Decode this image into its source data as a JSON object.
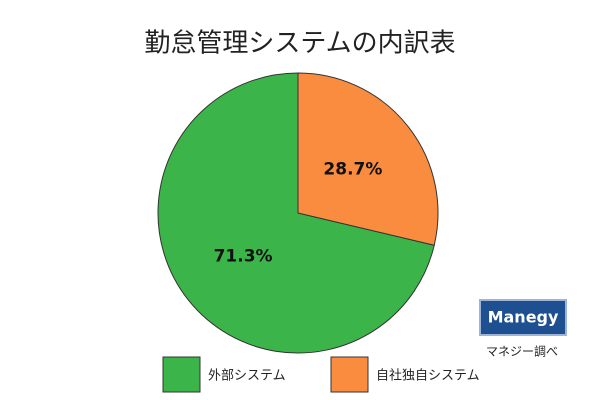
{
  "chart_data": {
    "type": "pie",
    "title": "勤怠管理システムの内訳表",
    "categories": [
      "外部システム",
      "自社独自システム"
    ],
    "values": [
      71.3,
      28.7
    ],
    "value_labels": [
      "71.3%",
      "28.7%"
    ],
    "colors": [
      "#3bb54a",
      "#f98c3f"
    ],
    "logo": "Manegy",
    "source": "マネジー調べ"
  }
}
